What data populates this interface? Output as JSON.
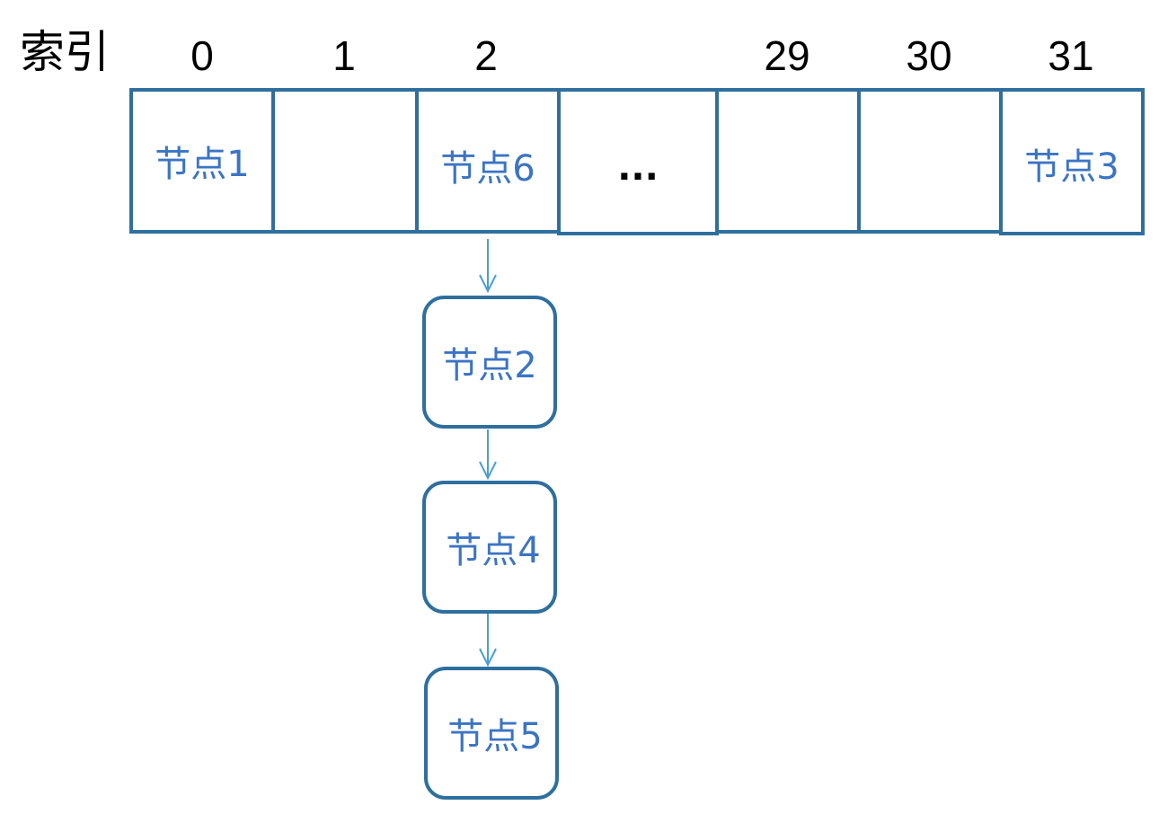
{
  "title": "索引",
  "indices": [
    "0",
    "1",
    "2",
    "29",
    "30",
    "31"
  ],
  "cells": [
    {
      "text": "节点1"
    },
    {
      "text": ""
    },
    {
      "text": "节点6"
    },
    {
      "text": "..."
    },
    {
      "text": ""
    },
    {
      "text": ""
    },
    {
      "text": "节点3"
    }
  ],
  "chain": [
    {
      "text": "节点2"
    },
    {
      "text": "节点4"
    },
    {
      "text": "节点5"
    }
  ],
  "colors": {
    "border": "#2f6f9e",
    "node_text": "#3b74c4",
    "arrow": "#4a9fd0"
  }
}
